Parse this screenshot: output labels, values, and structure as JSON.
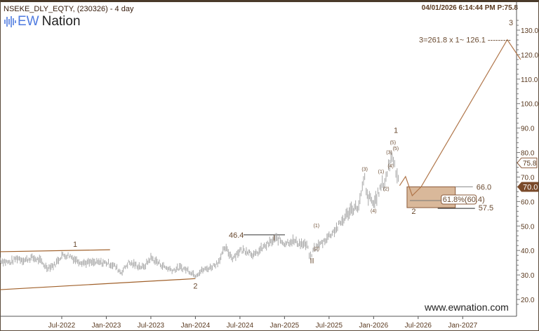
{
  "header": {
    "title": "NSEKE_DLY_EQTY, (230326) - 4 day",
    "logo_ew": "EW",
    "logo_nation": "Nation",
    "stamp": "04/01/2026 6:14:44 PM  P:75.8"
  },
  "footer": {
    "site": "www.ewnation.com"
  },
  "colors": {
    "price": "#a8a8a8",
    "wave": "#b0764a",
    "box": "#d9b89a",
    "badge": "#7a4a2a",
    "accent_blue": "#4f7be0"
  },
  "chart_data": {
    "type": "line",
    "title": "NSEKE_DLY_EQTY, (230326) - 4 day",
    "ylim": [
      17,
      135
    ],
    "yticks": [
      20,
      30,
      40,
      50,
      60,
      70,
      80,
      90,
      100,
      110,
      120,
      130
    ],
    "ytick_labels": [
      "20.0",
      "30.0",
      "40.0",
      "50.0",
      "60.0",
      "70.0",
      "80.0",
      "90.0",
      "100.0",
      "110.0",
      "120.0",
      "130.0"
    ],
    "xtick_labels": [
      "Jul-2022",
      "Jan-2023",
      "Jul-2023",
      "Jan-2024",
      "Jul-2024",
      "Jan-2025",
      "Jul-2025",
      "Jan-2026",
      "Jul-2026",
      "Jan-2027"
    ],
    "xtick_months": [
      6,
      12,
      18,
      24,
      30,
      36,
      42,
      48,
      54,
      60
    ],
    "xlim_months": [
      -2.3,
      66.9
    ],
    "price_series": {
      "months": [
        -2.3,
        -1,
        0,
        1,
        2,
        3,
        4,
        5,
        6,
        7,
        8,
        9,
        10,
        11,
        12,
        13,
        14,
        15,
        16,
        17,
        18,
        19,
        20,
        21,
        22,
        23,
        24,
        25,
        26,
        27,
        28,
        29,
        30,
        31,
        32,
        33,
        34,
        35,
        36,
        37,
        38,
        39,
        39.5,
        40,
        41,
        42,
        43,
        44,
        45,
        46,
        46.8,
        47,
        48,
        49,
        49.5,
        50,
        50.5,
        51,
        51.5
      ],
      "values": [
        36,
        35,
        37,
        36,
        37,
        36,
        33,
        34,
        38,
        38,
        36,
        35,
        35,
        35,
        35,
        34,
        31,
        35,
        34,
        33,
        37,
        35,
        33,
        32,
        33,
        32,
        30,
        32,
        33,
        35,
        41,
        37,
        40,
        40,
        38,
        41,
        43,
        45,
        43,
        44,
        43,
        42,
        37,
        41,
        43,
        46,
        49,
        53,
        57,
        58,
        70,
        63,
        59,
        66,
        68,
        74,
        79,
        73,
        68
      ],
      "last_price": 75.8,
      "current_badge": 70.0
    },
    "projection": {
      "months": [
        51.5,
        52.3,
        53.2,
        54.4,
        66.0,
        67.8
      ],
      "values": [
        66.5,
        70.2,
        62.4,
        66.0,
        126.1,
        118
      ]
    },
    "channel": {
      "upper": {
        "months": [
          -2.3,
          12.5
        ],
        "values": [
          39.5,
          40.3
        ]
      },
      "lower": {
        "months": [
          -2.3,
          24
        ],
        "values": [
          24,
          28.5
        ]
      }
    },
    "target_box": {
      "from_month": 52.5,
      "to_month": 59,
      "top": 66.0,
      "bottom": 57.5,
      "fib_level": 60.4
    },
    "annotations": {
      "resistance_label": "46.4",
      "box_top_label": "66.0",
      "box_bottom_label": "57.5",
      "fib_label": "61.8%(60.4)",
      "target_label": "3=261.8 x 1~ 126.1 ---------",
      "last_price_label": "75.8",
      "badge_label": "70.0",
      "wave_labels": [
        {
          "text": "1",
          "m": 7.8,
          "v": 41.5,
          "cls": "lbl"
        },
        {
          "text": "2",
          "m": 24,
          "v": 24.5,
          "cls": "lbl"
        },
        {
          "text": "I",
          "m": 34.6,
          "v": 44,
          "cls": "lbl"
        },
        {
          "text": "II",
          "m": 39.7,
          "v": 34.8,
          "cls": "lbl red"
        },
        {
          "text": "(1)",
          "m": 40.3,
          "v": 49.5,
          "cls": "sm"
        },
        {
          "text": "(2)",
          "m": 40.3,
          "v": 40,
          "cls": "sm"
        },
        {
          "text": "(3)",
          "m": 46.8,
          "v": 72.5,
          "cls": "sm"
        },
        {
          "text": "(4)",
          "m": 48,
          "v": 55.5,
          "cls": "sm"
        },
        {
          "text": "(1)",
          "m": 49,
          "v": 71.5,
          "cls": "sm"
        },
        {
          "text": "(2)",
          "m": 49.7,
          "v": 64.5,
          "cls": "sm"
        },
        {
          "text": "(3)",
          "m": 50.1,
          "v": 79.5,
          "cls": "sm"
        },
        {
          "text": "(4)",
          "m": 50.3,
          "v": 73.8,
          "cls": "sm"
        },
        {
          "text": "(5)",
          "m": 50.6,
          "v": 81,
          "cls": "sm"
        },
        {
          "text": "(5)",
          "m": 50.6,
          "v": 83.5,
          "cls": "sm"
        },
        {
          "text": "1",
          "m": 51,
          "v": 88,
          "cls": "lbl"
        },
        {
          "text": "2",
          "m": 53.4,
          "v": 55,
          "cls": "lbl"
        },
        {
          "text": "3",
          "m": 66.5,
          "v": 132,
          "cls": "lbl"
        }
      ]
    }
  }
}
